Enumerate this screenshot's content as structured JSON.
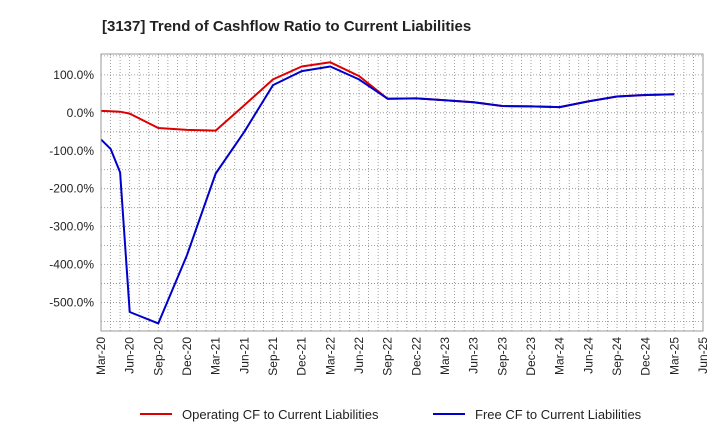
{
  "chart_data": {
    "type": "line",
    "title": "[3137]  Trend of Cashflow Ratio to Current Liabilities",
    "xlabel": "",
    "ylabel": "",
    "x": [
      "Mar-20",
      "Apr-20",
      "May-20",
      "Jun-20",
      "Sep-20",
      "Dec-20",
      "Mar-21",
      "Jun-21",
      "Sep-21",
      "Dec-21",
      "Mar-22",
      "Jun-22",
      "Sep-22",
      "Dec-22",
      "Mar-23",
      "Jun-23",
      "Sep-23",
      "Dec-23",
      "Mar-24",
      "Jun-24",
      "Sep-24",
      "Dec-24",
      "Mar-25"
    ],
    "x_ticks": [
      "Mar-20",
      "Jun-20",
      "Sep-20",
      "Dec-20",
      "Mar-21",
      "Jun-21",
      "Sep-21",
      "Dec-21",
      "Mar-22",
      "Jun-22",
      "Sep-22",
      "Dec-22",
      "Mar-23",
      "Jun-23",
      "Sep-23",
      "Dec-23",
      "Mar-24",
      "Jun-24",
      "Sep-24",
      "Dec-24",
      "Mar-25",
      "Jun-25"
    ],
    "y_ticks": [
      "100.0%",
      "0.0%",
      "-100.0%",
      "-200.0%",
      "-300.0%",
      "-400.0%",
      "-500.0%"
    ],
    "ylim": [
      -575,
      155
    ],
    "grid": true,
    "legend_position": "bottom",
    "series": [
      {
        "name": "Operating CF to Current Liabilities",
        "color": "#dd0000",
        "values": [
          5,
          4,
          3,
          -2,
          -40,
          -45,
          -47,
          20,
          88,
          122,
          133,
          97,
          37,
          38,
          33,
          28,
          18,
          17,
          15,
          30,
          43,
          47,
          49
        ]
      },
      {
        "name": "Free CF to Current Liabilities",
        "color": "#0000cc",
        "values": [
          -70,
          -95,
          -157,
          -525,
          -555,
          -375,
          -160,
          -50,
          73,
          110,
          122,
          88,
          37,
          38,
          33,
          28,
          18,
          17,
          15,
          30,
          43,
          47,
          49
        ]
      }
    ]
  }
}
